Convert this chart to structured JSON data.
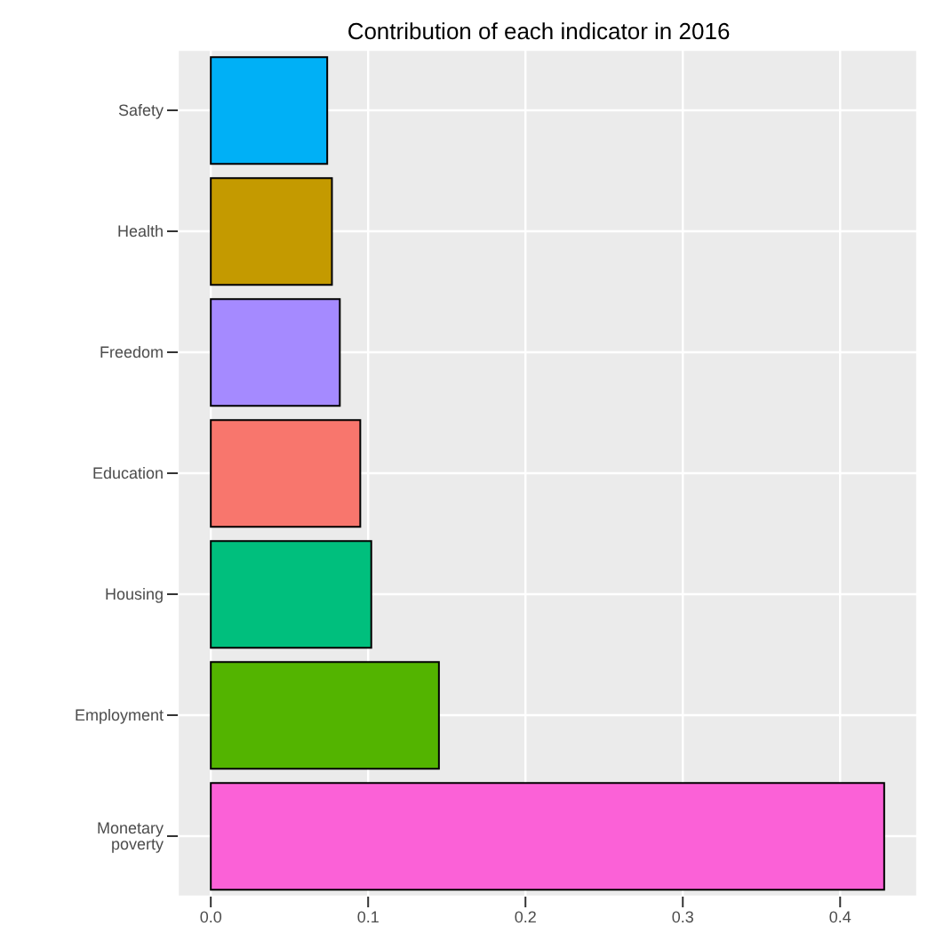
{
  "chart_data": {
    "type": "bar",
    "orientation": "horizontal",
    "title": "Contribution of each indicator in 2016",
    "categories": [
      "Safety",
      "Health",
      "Freedom",
      "Education",
      "Housing",
      "Employment",
      "Monetary poverty"
    ],
    "values": [
      0.074,
      0.077,
      0.082,
      0.095,
      0.102,
      0.145,
      0.428
    ],
    "colors": [
      "#00b0f6",
      "#c49a00",
      "#a58aff",
      "#f8766d",
      "#00bf7d",
      "#53b400",
      "#fb61d7"
    ],
    "xlim": [
      -0.021,
      0.449
    ],
    "xticks": [
      {
        "value": 0,
        "label": "0.0"
      },
      0.1,
      0.2,
      0.3,
      0.4
    ],
    "grid": true
  }
}
